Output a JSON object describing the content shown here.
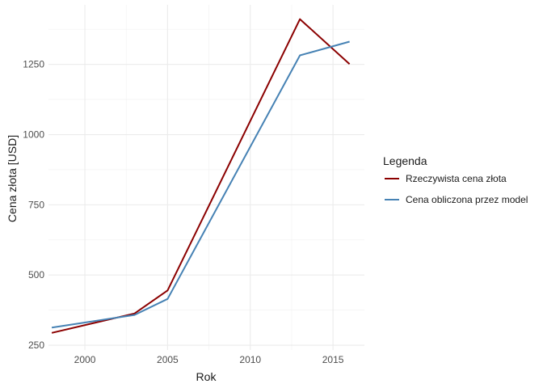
{
  "chart_data": {
    "type": "line",
    "xlabel": "Rok",
    "ylabel": "Cena złota [USD]",
    "xlim": [
      1997.8,
      2016.9
    ],
    "ylim": [
      233,
      1462
    ],
    "x_ticks": [
      2000,
      2005,
      2010,
      2015
    ],
    "y_ticks": [
      250,
      500,
      750,
      1000,
      1250
    ],
    "grid": true,
    "legend": {
      "title": "Legenda",
      "placement": "right"
    },
    "series": [
      {
        "name": "Rzeczywista cena złota",
        "color": "#8b0000",
        "x": [
          1998,
          2003,
          2005,
          2013,
          2016
        ],
        "y": [
          294,
          363,
          445,
          1411,
          1251
        ]
      },
      {
        "name": "Cena obliczona przez model",
        "color": "#4682b4",
        "x": [
          1998,
          2003,
          2005,
          2013,
          2016
        ],
        "y": [
          313,
          358,
          415,
          1282,
          1331
        ]
      }
    ]
  }
}
